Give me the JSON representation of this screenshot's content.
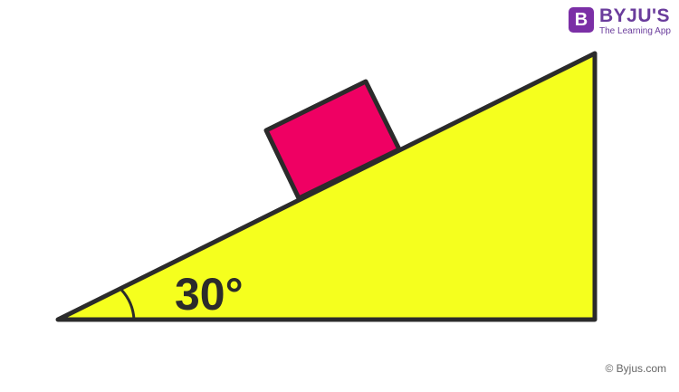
{
  "diagram": {
    "angle_label": "30°",
    "colors": {
      "incline_fill": "#f5ff1e",
      "block_fill": "#ef0063",
      "outline": "#2b2b2b"
    }
  },
  "brand": {
    "logo_letter": "B",
    "name": "BYJU'S",
    "tagline": "The Learning App"
  },
  "footer": {
    "copyright": "© Byjus.com"
  }
}
